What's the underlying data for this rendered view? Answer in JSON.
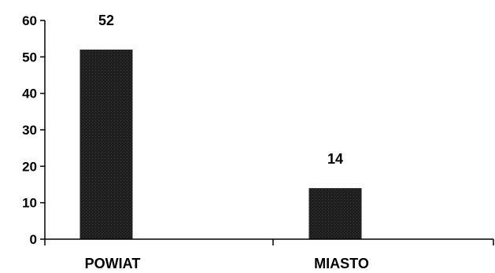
{
  "chart_data": {
    "type": "bar",
    "categories": [
      "POWIAT",
      "MIASTO"
    ],
    "values": [
      52,
      14
    ],
    "data_labels": [
      "52",
      "14"
    ],
    "ylim": [
      0,
      60
    ],
    "yticks": [
      0,
      10,
      20,
      30,
      40,
      50,
      60
    ],
    "ytick_labels": [
      "0",
      "10",
      "20",
      "30",
      "40",
      "50",
      "60"
    ],
    "grid": false,
    "legend": "none",
    "bar_color": "#1e1e1e",
    "axis_color": "#000000"
  }
}
